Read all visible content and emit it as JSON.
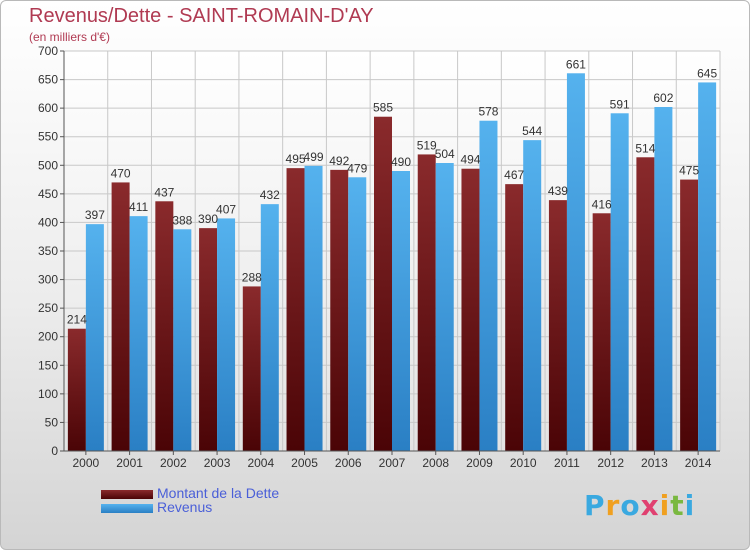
{
  "chart_data": {
    "type": "bar",
    "title": "Revenus/Dette - SAINT-ROMAIN-D'AY",
    "subtitle": "(en milliers d'€)",
    "categories": [
      "2000",
      "2001",
      "2002",
      "2003",
      "2004",
      "2005",
      "2006",
      "2007",
      "2008",
      "2009",
      "2010",
      "2011",
      "2012",
      "2013",
      "2014"
    ],
    "series": [
      {
        "name": "Montant de la Dette",
        "values": [
          214,
          470,
          437,
          390,
          288,
          495,
          492,
          585,
          519,
          494,
          467,
          439,
          416,
          514,
          475
        ]
      },
      {
        "name": "Revenus",
        "values": [
          397,
          411,
          388,
          407,
          432,
          499,
          479,
          490,
          504,
          578,
          544,
          661,
          591,
          602,
          645
        ]
      }
    ],
    "ylim": [
      0,
      700
    ],
    "yticks": [
      0,
      50,
      100,
      150,
      200,
      250,
      300,
      350,
      400,
      450,
      500,
      550,
      600,
      650,
      700
    ],
    "grid": true,
    "legend_position": "bottom-left",
    "colors": {
      "debt": "#7a1a1c",
      "revenue": "#4aa4e6",
      "title": "#b03a52",
      "legend_text": "#4a5fd8"
    }
  },
  "logo": {
    "letters": [
      "P",
      "r",
      "o",
      "x",
      "i",
      "t",
      "i"
    ],
    "colors": [
      "#3aa9e0",
      "#f0a020",
      "#3aa9e0",
      "#e04070",
      "#f0a020",
      "#7ab840",
      "#3aa9e0"
    ]
  }
}
